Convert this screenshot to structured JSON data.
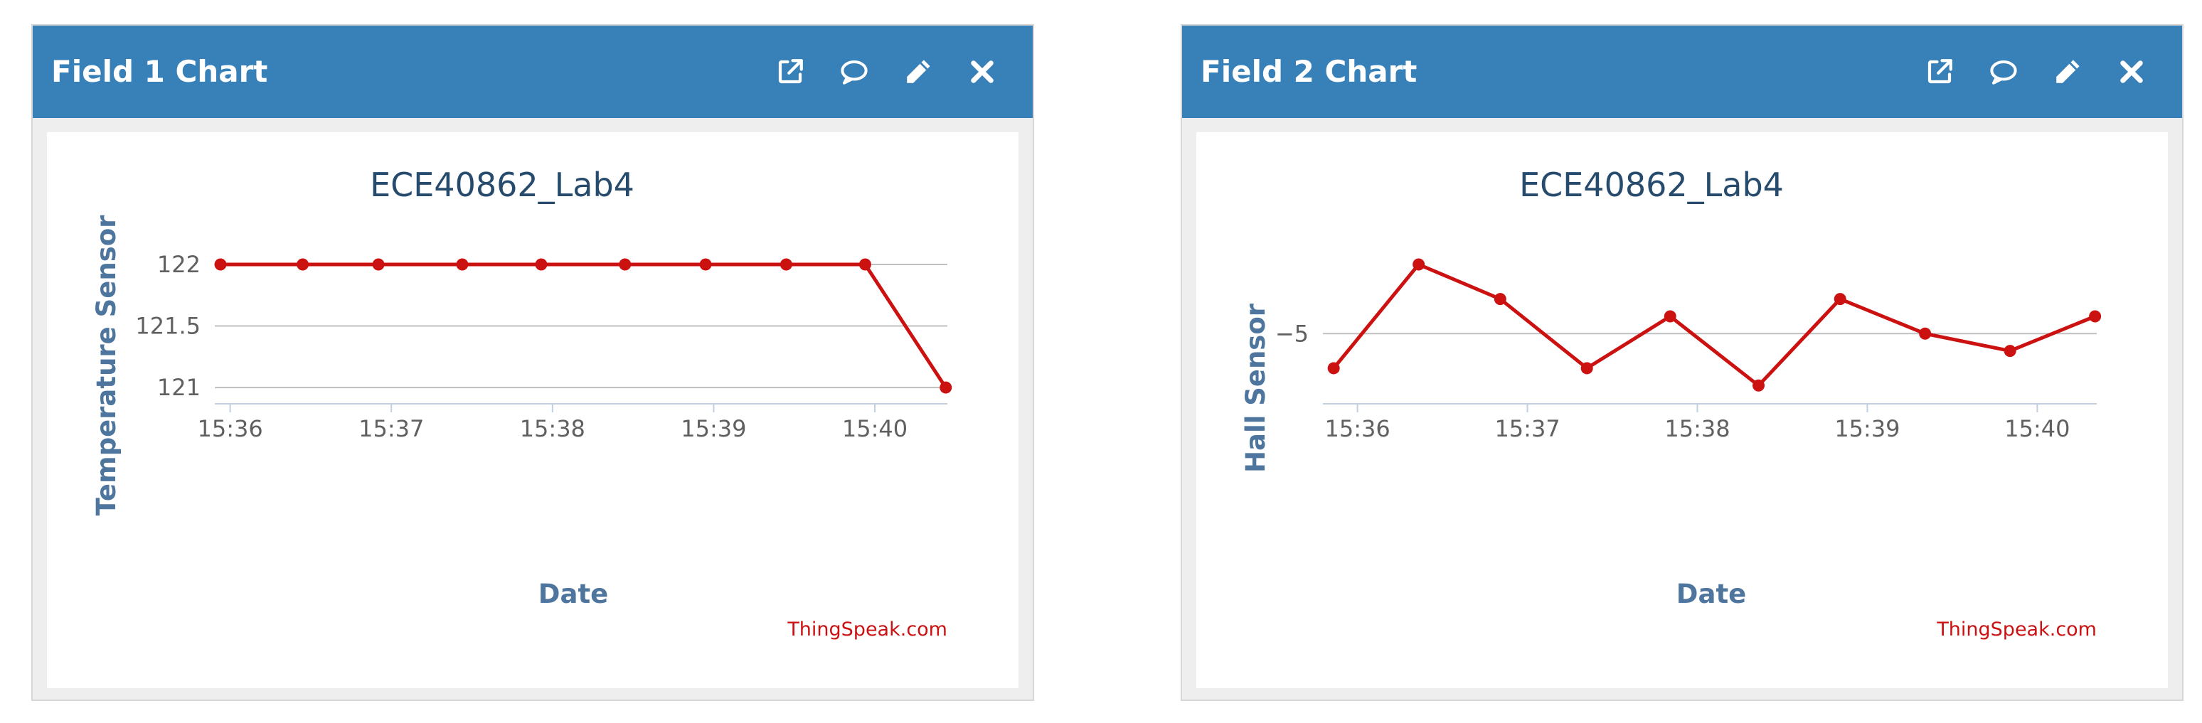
{
  "panels": [
    {
      "title": "Field 1 Chart",
      "icons": [
        "external-link-icon",
        "comment-icon",
        "pencil-icon",
        "close-icon"
      ],
      "chart_data": {
        "type": "line",
        "title": "ECE40862_Lab4",
        "xlabel": "Date",
        "ylabel": "Temperature Sensor",
        "x_ticks": [
          "15:36",
          "15:37",
          "15:38",
          "15:39",
          "15:40"
        ],
        "x_tick_values": [
          0,
          1,
          2,
          3,
          4
        ],
        "y_ticks": [
          "122",
          "121.5",
          "121"
        ],
        "y_tick_values": [
          122,
          121.5,
          121
        ],
        "xlim": [
          -0.06,
          4.45
        ],
        "ylim": [
          120.96,
          122.0
        ],
        "series": [
          {
            "color": "#cc1111",
            "x": [
              -0.06,
              0.45,
              0.92,
              1.44,
              1.93,
              2.45,
              2.95,
              3.45,
              3.94,
              4.44
            ],
            "y": [
              122,
              122,
              122,
              122,
              122,
              122,
              122,
              122,
              122,
              121
            ]
          }
        ],
        "credit": "ThingSpeak.com",
        "grid": true
      }
    },
    {
      "title": "Field 2 Chart",
      "icons": [
        "external-link-icon",
        "comment-icon",
        "pencil-icon",
        "close-icon"
      ],
      "chart_data": {
        "type": "line",
        "title": "ECE40862_Lab4",
        "xlabel": "Date",
        "ylabel": "Hall Sensor",
        "x_ticks": [
          "15:36",
          "15:37",
          "15:38",
          "15:39",
          "15:40"
        ],
        "x_tick_values": [
          0,
          1,
          2,
          3,
          4
        ],
        "y_ticks": [
          "−5"
        ],
        "y_tick_values": [
          -5
        ],
        "xlim": [
          -0.17,
          4.35
        ],
        "ylim": [
          -8.4,
          -1.0
        ],
        "series": [
          {
            "color": "#cc1111",
            "x": [
              -0.14,
              0.36,
              0.84,
              1.35,
              1.84,
              2.36,
              2.84,
              3.34,
              3.84,
              4.34
            ],
            "y": [
              -7,
              -1,
              -3,
              -7,
              -4,
              -8,
              -3,
              -5,
              -6,
              -4
            ]
          }
        ],
        "credit": "ThingSpeak.com",
        "grid": true
      }
    }
  ]
}
